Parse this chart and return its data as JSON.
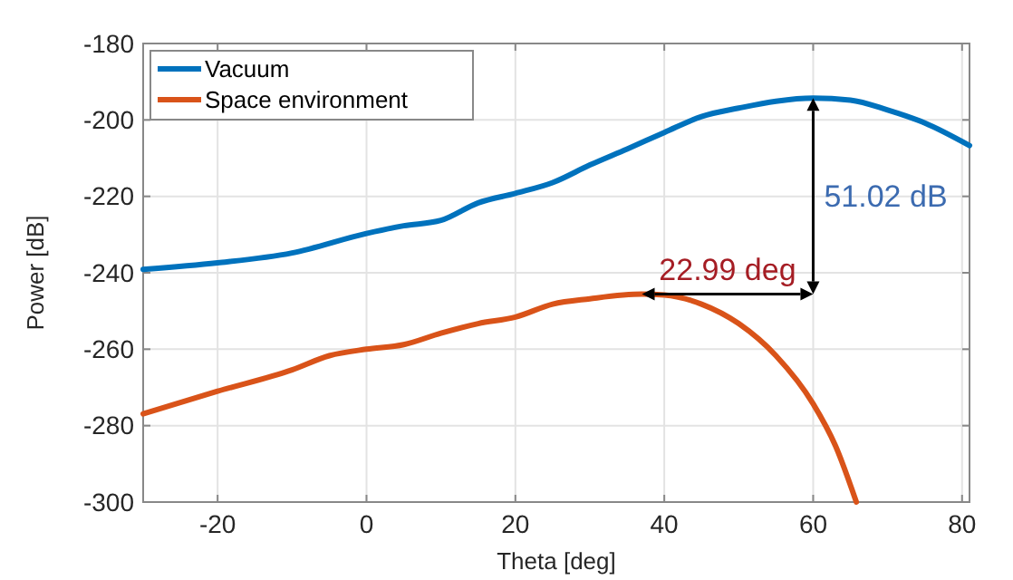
{
  "chart_data": {
    "type": "line",
    "xlabel": "Theta [deg]",
    "ylabel": "Power [dB]",
    "xlim": [
      -30,
      81
    ],
    "xticks": [
      -20,
      0,
      20,
      40,
      60,
      80
    ],
    "ylim": [
      -300,
      -180
    ],
    "yticks": [
      -300,
      -280,
      -260,
      -240,
      -220,
      -200,
      -180
    ],
    "grid": true,
    "legend": "top left",
    "series": [
      {
        "name": "Vacuum",
        "color": "#0072bd",
        "x": [
          -30,
          -20,
          -10,
          0,
          5,
          10,
          15,
          20,
          25,
          30,
          35,
          40,
          45,
          50,
          55,
          60,
          65,
          70,
          75,
          81
        ],
        "values": [
          -239.1,
          -237.4,
          -234.8,
          -229.7,
          -227.7,
          -226.3,
          -221.7,
          -219.2,
          -216.4,
          -211.8,
          -207.6,
          -203.3,
          -199.1,
          -196.9,
          -195.1,
          -194.3,
          -194.8,
          -197.4,
          -200.8,
          -206.7
        ]
      },
      {
        "name": "Space environment",
        "color": "#d95319",
        "x": [
          -30,
          -20,
          -10,
          -5,
          0,
          5,
          10,
          15,
          20,
          25,
          30,
          37,
          40,
          45,
          50,
          55,
          60,
          63,
          65.8
        ],
        "values": [
          -276.9,
          -271,
          -265.4,
          -261.7,
          -260,
          -258.8,
          -255.8,
          -253.3,
          -251.6,
          -248.2,
          -246.8,
          -245.6,
          -245.8,
          -248.2,
          -253.3,
          -261.7,
          -274.3,
          -285.3,
          -300
        ]
      }
    ],
    "annotations": [
      "51.02 dB",
      "22.99 deg"
    ]
  }
}
